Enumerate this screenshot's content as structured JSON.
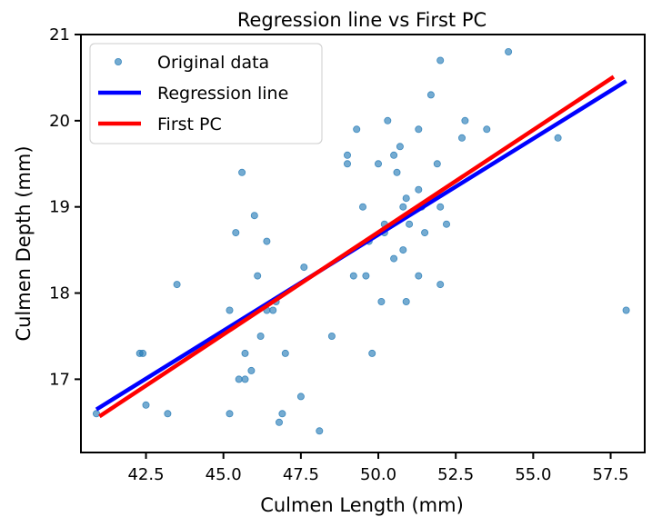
{
  "chart_data": {
    "type": "scatter",
    "title": "Regression line vs First PC",
    "xlabel": "Culmen Length (mm)",
    "ylabel": "Culmen Depth (mm)",
    "xlim": [
      40.4,
      58.6
    ],
    "ylim": [
      16.15,
      21.0
    ],
    "xticks": [
      42.5,
      45.0,
      47.5,
      50.0,
      52.5,
      55.0,
      57.5
    ],
    "xtick_labels": [
      "42.5",
      "45.0",
      "47.5",
      "50.0",
      "52.5",
      "55.0",
      "57.5"
    ],
    "yticks": [
      17,
      18,
      19,
      20,
      21
    ],
    "ytick_labels": [
      "17",
      "18",
      "19",
      "20",
      "21"
    ],
    "legend_position": "top-left",
    "series": [
      {
        "name": "Original data",
        "kind": "scatter",
        "color": "#1f77b4",
        "points": [
          [
            40.9,
            16.6
          ],
          [
            42.3,
            17.3
          ],
          [
            42.4,
            17.3
          ],
          [
            42.5,
            16.7
          ],
          [
            43.2,
            16.6
          ],
          [
            43.5,
            18.1
          ],
          [
            45.2,
            17.8
          ],
          [
            45.2,
            16.6
          ],
          [
            45.4,
            18.7
          ],
          [
            45.5,
            17.0
          ],
          [
            45.6,
            19.4
          ],
          [
            45.7,
            17.0
          ],
          [
            45.7,
            17.3
          ],
          [
            45.9,
            17.1
          ],
          [
            46.0,
            18.9
          ],
          [
            46.1,
            18.2
          ],
          [
            46.2,
            17.5
          ],
          [
            46.4,
            17.8
          ],
          [
            46.4,
            18.6
          ],
          [
            46.6,
            17.8
          ],
          [
            46.7,
            17.9
          ],
          [
            46.8,
            16.5
          ],
          [
            46.9,
            16.6
          ],
          [
            47.0,
            17.3
          ],
          [
            47.5,
            16.8
          ],
          [
            47.6,
            18.3
          ],
          [
            48.1,
            16.4
          ],
          [
            48.5,
            17.5
          ],
          [
            49.0,
            19.6
          ],
          [
            49.0,
            19.5
          ],
          [
            49.2,
            18.2
          ],
          [
            49.3,
            19.9
          ],
          [
            49.5,
            19.0
          ],
          [
            49.6,
            18.2
          ],
          [
            49.7,
            18.6
          ],
          [
            49.8,
            17.3
          ],
          [
            50.0,
            19.5
          ],
          [
            50.1,
            17.9
          ],
          [
            50.2,
            18.8
          ],
          [
            50.2,
            18.7
          ],
          [
            50.3,
            20.0
          ],
          [
            50.5,
            19.6
          ],
          [
            50.5,
            18.4
          ],
          [
            50.6,
            19.4
          ],
          [
            50.7,
            19.7
          ],
          [
            50.8,
            19.0
          ],
          [
            50.8,
            18.5
          ],
          [
            50.9,
            17.9
          ],
          [
            50.9,
            19.1
          ],
          [
            51.0,
            18.8
          ],
          [
            51.3,
            19.2
          ],
          [
            51.3,
            19.9
          ],
          [
            51.3,
            18.2
          ],
          [
            51.4,
            19.0
          ],
          [
            51.5,
            18.7
          ],
          [
            51.7,
            20.3
          ],
          [
            51.9,
            19.5
          ],
          [
            52.0,
            19.0
          ],
          [
            52.0,
            18.1
          ],
          [
            52.0,
            20.7
          ],
          [
            52.2,
            18.8
          ],
          [
            52.7,
            19.8
          ],
          [
            52.8,
            20.0
          ],
          [
            53.5,
            19.9
          ],
          [
            54.2,
            20.8
          ],
          [
            55.8,
            19.8
          ],
          [
            58.0,
            17.8
          ]
        ]
      },
      {
        "name": "Regression line",
        "kind": "line",
        "color": "#0000ff",
        "points": [
          [
            40.9,
            16.65
          ],
          [
            58.0,
            20.46
          ]
        ]
      },
      {
        "name": "First PC",
        "kind": "line",
        "color": "#ff0000",
        "points": [
          [
            41.0,
            16.57
          ],
          [
            57.6,
            20.51
          ]
        ]
      }
    ]
  }
}
